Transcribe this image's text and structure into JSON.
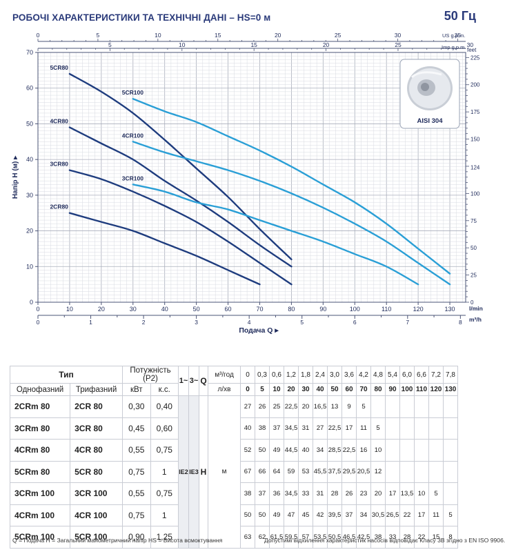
{
  "header": {
    "title": "РОБОЧІ ХАРАКТЕРИСТИКИ ТА ТЕХНІЧНІ ДАНІ  –  HS=0 м",
    "frequency": "50 Гц"
  },
  "chart_data": {
    "type": "line",
    "xlabel": "Подача Q",
    "ylabel": "Напір H  (м)",
    "xlim": [
      0,
      135
    ],
    "ylim": [
      0,
      70
    ],
    "x_unit_label": "l/min",
    "x2_unit_label": "m³/h",
    "top_axis1_label": "US g.p.m.",
    "top_axis2_label": "Imp g.p.m.",
    "right_axis_label": "feet",
    "x_ticks": [
      0,
      10,
      20,
      30,
      40,
      50,
      60,
      70,
      80,
      90,
      100,
      110,
      120,
      130
    ],
    "y_ticks": [
      0,
      10,
      20,
      30,
      40,
      50,
      60,
      70
    ],
    "m3h_ticks": [
      "0",
      "1",
      "2",
      "3",
      "4",
      "5",
      "6",
      "7",
      "8"
    ],
    "us_gpm_ticks": [
      "0",
      "5",
      "10",
      "15",
      "20",
      "25",
      "30",
      "35"
    ],
    "imp_gpm_ticks": [
      "0",
      "5",
      "10",
      "15",
      "20",
      "25",
      "30"
    ],
    "feet_ticks": [
      "0",
      "25",
      "50",
      "75",
      "100",
      "124",
      "150",
      "175",
      "200",
      "225"
    ],
    "inset_label": "AISI 304",
    "grid": true,
    "series": [
      {
        "name": "2CR80",
        "color": "#1e3c7e",
        "x": [
          10,
          20,
          30,
          40,
          50,
          60,
          70
        ],
        "y": [
          25,
          22.5,
          20,
          16.5,
          13,
          9,
          5
        ]
      },
      {
        "name": "3CR80",
        "color": "#1e3c7e",
        "x": [
          10,
          20,
          30,
          40,
          50,
          60,
          70,
          80
        ],
        "y": [
          37,
          34.5,
          31,
          27,
          22.5,
          17,
          11,
          5
        ]
      },
      {
        "name": "4CR80",
        "color": "#1e3c7e",
        "x": [
          10,
          20,
          30,
          40,
          50,
          60,
          70,
          80
        ],
        "y": [
          49,
          44.5,
          40,
          34,
          28.5,
          22.5,
          16,
          10
        ]
      },
      {
        "name": "5CR80",
        "color": "#1e3c7e",
        "x": [
          10,
          20,
          30,
          40,
          50,
          60,
          70,
          80
        ],
        "y": [
          64,
          59,
          53,
          45.5,
          37.5,
          29.5,
          20.5,
          12
        ]
      },
      {
        "name": "3CR100",
        "color": "#2a9fd6",
        "x": [
          30,
          40,
          50,
          60,
          70,
          80,
          90,
          100,
          110,
          120
        ],
        "y": [
          33,
          31,
          28,
          26,
          23,
          20,
          17,
          13.5,
          10,
          5
        ]
      },
      {
        "name": "4CR100",
        "color": "#2a9fd6",
        "x": [
          30,
          40,
          50,
          60,
          70,
          80,
          90,
          100,
          110,
          120,
          130
        ],
        "y": [
          45,
          42,
          39.5,
          37,
          34,
          30.5,
          26.5,
          22,
          17,
          11,
          5
        ]
      },
      {
        "name": "5CR100",
        "color": "#2a9fd6",
        "x": [
          30,
          40,
          50,
          60,
          70,
          80,
          90,
          100,
          110,
          120,
          130
        ],
        "y": [
          57,
          53.5,
          50.5,
          46.5,
          42.5,
          38,
          33,
          28,
          22,
          15,
          8
        ]
      }
    ]
  },
  "table": {
    "type_header": "Тип",
    "power_header": "Потужність (P2)",
    "single_phase": "Однофазний",
    "three_phase": "Трифазний",
    "kw": "кВт",
    "hp": "к.с.",
    "phase1": "1~",
    "phase3": "3~",
    "q_label": "Q",
    "m3h_label": "м³/год",
    "lmin_label": "л/хв",
    "ie2": "IE2",
    "ie3": "IE3",
    "h_label": "H",
    "m_label": "м",
    "flow_m3h": [
      "0",
      "0,3",
      "0,6",
      "1,2",
      "1,8",
      "2,4",
      "3,0",
      "3,6",
      "4,2",
      "4,8",
      "5,4",
      "6,0",
      "6,6",
      "7,2",
      "7,8"
    ],
    "flow_lmin": [
      "0",
      "5",
      "10",
      "20",
      "30",
      "40",
      "50",
      "60",
      "70",
      "80",
      "90",
      "100",
      "110",
      "120",
      "130"
    ],
    "rows": [
      {
        "single": "2CRm 80",
        "three": "2CR 80",
        "kw": "0,30",
        "hp": "0,40",
        "heads": [
          "27",
          "26",
          "25",
          "22,5",
          "20",
          "16,5",
          "13",
          "9",
          "5",
          "",
          "",
          "",
          "",
          "",
          ""
        ]
      },
      {
        "single": "3CRm 80",
        "three": "3CR 80",
        "kw": "0,45",
        "hp": "0,60",
        "heads": [
          "40",
          "38",
          "37",
          "34,5",
          "31",
          "27",
          "22,5",
          "17",
          "11",
          "5",
          "",
          "",
          "",
          "",
          ""
        ]
      },
      {
        "single": "4CRm 80",
        "three": "4CR 80",
        "kw": "0,55",
        "hp": "0,75",
        "heads": [
          "52",
          "50",
          "49",
          "44,5",
          "40",
          "34",
          "28,5",
          "22,5",
          "16",
          "10",
          "",
          "",
          "",
          "",
          ""
        ]
      },
      {
        "single": "5CRm 80",
        "three": "5CR 80",
        "kw": "0,75",
        "hp": "1",
        "heads": [
          "67",
          "66",
          "64",
          "59",
          "53",
          "45,5",
          "37,5",
          "29,5",
          "20,5",
          "12",
          "",
          "",
          "",
          "",
          ""
        ]
      },
      {
        "single": "3CRm 100",
        "three": "3CR 100",
        "kw": "0,55",
        "hp": "0,75",
        "heads": [
          "38",
          "37",
          "36",
          "34,5",
          "33",
          "31",
          "28",
          "26",
          "23",
          "20",
          "17",
          "13,5",
          "10",
          "5",
          ""
        ]
      },
      {
        "single": "4CRm 100",
        "three": "4CR 100",
        "kw": "0,75",
        "hp": "1",
        "heads": [
          "50",
          "50",
          "49",
          "47",
          "45",
          "42",
          "39,5",
          "37",
          "34",
          "30,5",
          "26,5",
          "22",
          "17",
          "11",
          "5"
        ]
      },
      {
        "single": "5CRm 100",
        "three": "5CR 100",
        "kw": "0,90",
        "hp": "1,25",
        "heads": [
          "63",
          "62",
          "61,5",
          "59,5",
          "57",
          "53,5",
          "50,5",
          "46,5",
          "42,5",
          "38",
          "33",
          "28",
          "22",
          "15",
          "8"
        ]
      }
    ]
  },
  "footer": {
    "left": "Q = Подача  H = Загальний манометричний напір  HS = Висота всмоктування",
    "right": "Допустимі відхилення характеристик насосів відповідає Класу 3B згідно з EN ISO 9906."
  }
}
